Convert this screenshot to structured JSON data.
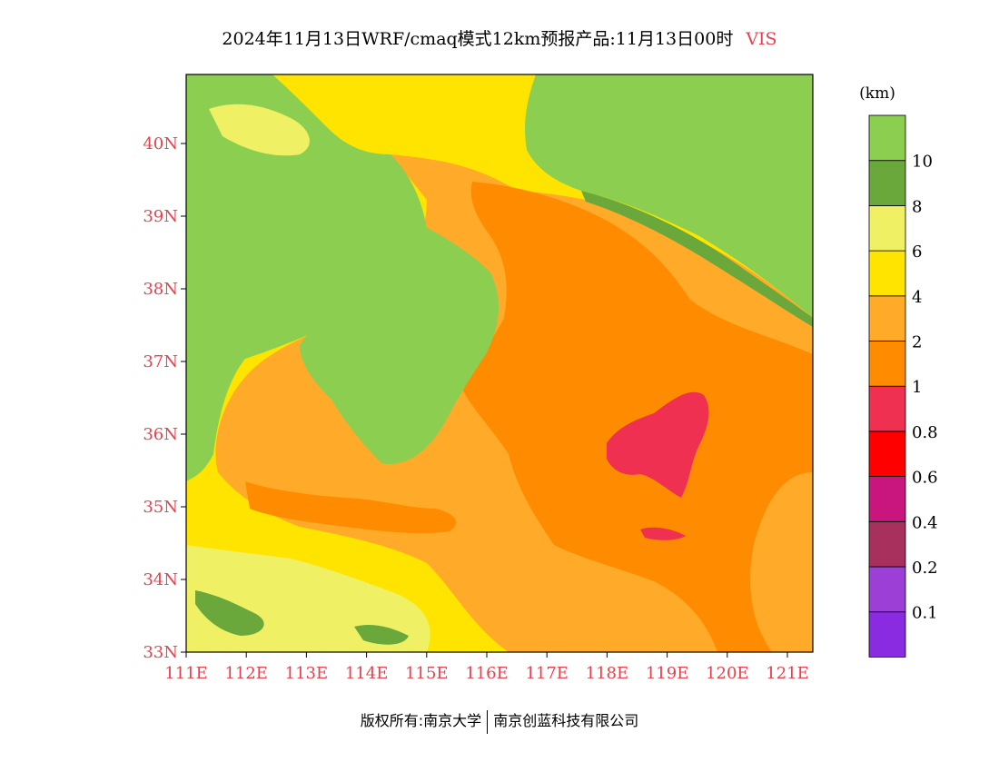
{
  "title": {
    "text": "2024年11月13日WRF/cmaq模式12km预报产品:11月13日00时",
    "variable": "VIS"
  },
  "legend": {
    "unit": "(km)",
    "colors": [
      "#8a2be2",
      "#9b3fd6",
      "#a8305c",
      "#c8167e",
      "#ff0000",
      "#f03050",
      "#ff8c00",
      "#ffaa28",
      "#ffe400",
      "#f0f064",
      "#6aa83c",
      "#8ccf50"
    ],
    "labels": [
      "0.1",
      "0.2",
      "0.4",
      "0.6",
      "0.8",
      "1",
      "2",
      "4",
      "6",
      "8",
      "10"
    ]
  },
  "axes": {
    "x_ticks": [
      "111E",
      "112E",
      "113E",
      "114E",
      "115E",
      "116E",
      "117E",
      "118E",
      "119E",
      "120E",
      "121E"
    ],
    "y_ticks": [
      "33N",
      "34N",
      "35N",
      "36N",
      "37N",
      "38N",
      "39N",
      "40N"
    ],
    "tick_color": "#e8414d"
  },
  "footer": {
    "left": "版权所有:南京大学",
    "right": "南京创蓝科技有限公司"
  }
}
